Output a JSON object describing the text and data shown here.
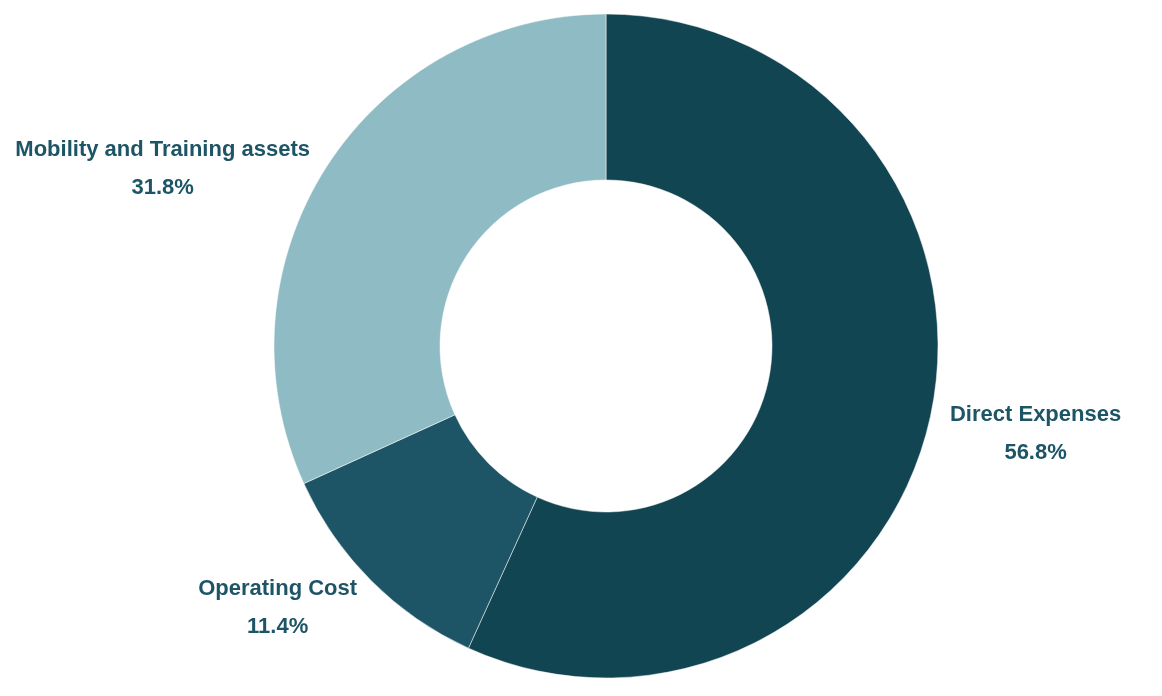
{
  "chart_data": {
    "type": "donut",
    "categories": [
      "Direct Expenses",
      "Operating Cost",
      "Mobility and Training assets"
    ],
    "values": [
      56.8,
      11.4,
      31.8
    ],
    "value_labels": [
      "56.8%",
      "11.4%",
      "31.8%"
    ],
    "colors": [
      "#124552",
      "#1d5566",
      "#8fbcc4"
    ]
  }
}
